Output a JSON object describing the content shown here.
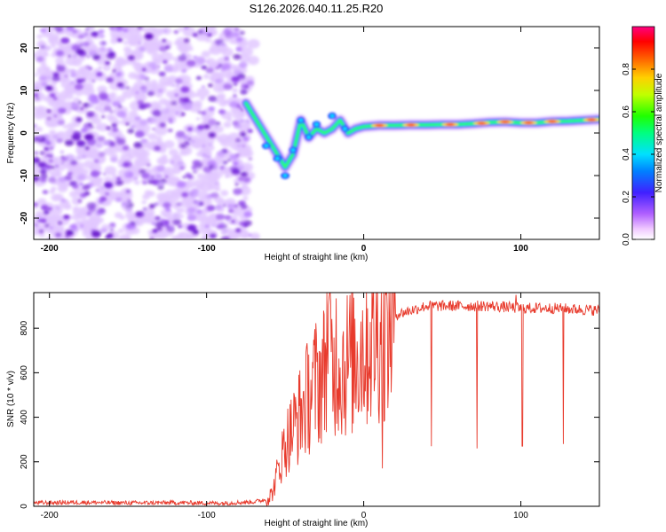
{
  "title": "S126.2026.040.11.25.R20",
  "chart_data": [
    {
      "type": "heatmap",
      "title": "S126.2026.040.11.25.R20",
      "xlabel": "Height of straight line (km)",
      "ylabel": "Frequency (Hz)",
      "xlim": [
        -210,
        150
      ],
      "ylim": [
        -25,
        25
      ],
      "xticks": [
        -200,
        -100,
        0,
        100
      ],
      "yticks": [
        -20,
        -10,
        0,
        10,
        20
      ],
      "colorbar": {
        "label": "Normalized spectral amplitude",
        "range": [
          0,
          1
        ],
        "ticks": [
          0.0,
          0.2,
          0.4,
          0.6,
          0.8
        ],
        "tick_labels": [
          "0.0",
          "0.2",
          "0.4",
          "0.6",
          "0.8"
        ]
      },
      "noise_region": {
        "x_from": -210,
        "x_to": -72,
        "freq_from": -25,
        "freq_to": 25
      },
      "signal_ridge": {
        "x": [
          -75,
          -70,
          -65,
          -60,
          -55,
          -50,
          -45,
          -40,
          -35,
          -30,
          -25,
          -20,
          -15,
          -10,
          -5,
          0,
          10,
          20,
          30,
          40,
          50,
          60,
          70,
          80,
          90,
          100,
          110,
          120,
          130,
          140,
          150
        ],
        "freq": [
          7,
          4,
          1,
          -2,
          -5,
          -8,
          -5,
          3,
          -1,
          1,
          0,
          1,
          3,
          0,
          1,
          1.5,
          1.8,
          1.8,
          1.9,
          1.9,
          2,
          2,
          2.2,
          2.5,
          2.6,
          2.4,
          2.4,
          2.7,
          2.8,
          3,
          3.2
        ]
      }
    },
    {
      "type": "line",
      "xlabel": "Height of straight line (km)",
      "ylabel": "SNR (10 * v/v)",
      "xlim": [
        -210,
        150
      ],
      "ylim": [
        0,
        960
      ],
      "xticks": [
        -200,
        -100,
        0,
        100
      ],
      "yticks": [
        0,
        200,
        400,
        600,
        800
      ],
      "color": "#e83a2c",
      "series": [
        {
          "name": "SNR",
          "x": [
            -210,
            -180,
            -150,
            -120,
            -90,
            -70,
            -62,
            -58,
            -55,
            -50,
            -45,
            -40,
            -35,
            -30,
            -25,
            -22,
            -20,
            -17,
            -15,
            -10,
            -5,
            0,
            5,
            10,
            15,
            20,
            30,
            40,
            60,
            80,
            100,
            120,
            150
          ],
          "values": [
            15,
            18,
            15,
            16,
            14,
            20,
            30,
            60,
            150,
            280,
            350,
            420,
            500,
            560,
            600,
            940,
            580,
            700,
            620,
            650,
            680,
            720,
            760,
            790,
            830,
            860,
            880,
            900,
            900,
            900,
            890,
            890,
            880
          ]
        }
      ],
      "dips": [
        {
          "x": 12,
          "value": 170
        },
        {
          "x": 43,
          "value": 270
        },
        {
          "x": 72,
          "value": 260
        },
        {
          "x": 101,
          "value": 270
        },
        {
          "x": 127,
          "value": 280
        }
      ],
      "peaks": [
        {
          "x": -22,
          "value": 940
        },
        {
          "x": 97,
          "value": 950
        }
      ]
    }
  ]
}
